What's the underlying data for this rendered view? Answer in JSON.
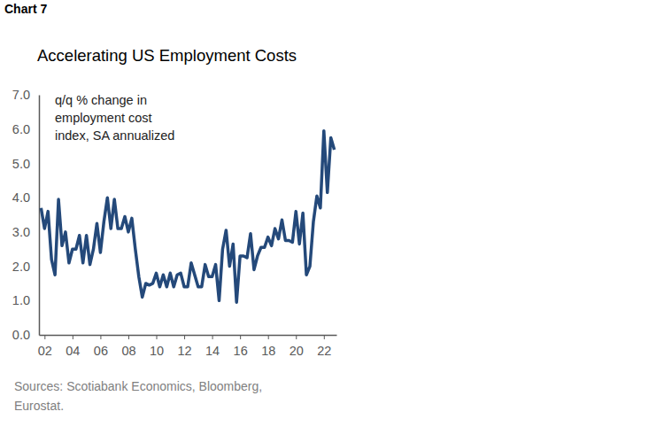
{
  "chart_data": {
    "type": "line",
    "chart_label": "Chart 7",
    "title": "Accelerating US Employment Costs",
    "annotations": [
      "q/q % change in",
      "employment cost",
      "index, SA annualized"
    ],
    "source": [
      "Sources: Scotiabank Economics, Bloomberg,",
      "Eurostat."
    ],
    "color": "#24497a",
    "x": [
      2001.75,
      2002.0,
      2002.25,
      2002.5,
      2002.75,
      2003.0,
      2003.25,
      2003.5,
      2003.75,
      2004.0,
      2004.25,
      2004.5,
      2004.75,
      2005.0,
      2005.25,
      2005.5,
      2005.75,
      2006.0,
      2006.25,
      2006.5,
      2006.75,
      2007.0,
      2007.25,
      2007.5,
      2007.75,
      2008.0,
      2008.25,
      2008.5,
      2008.75,
      2009.0,
      2009.25,
      2009.5,
      2009.75,
      2010.0,
      2010.25,
      2010.5,
      2010.75,
      2011.0,
      2011.25,
      2011.5,
      2011.75,
      2012.0,
      2012.25,
      2012.5,
      2012.75,
      2013.0,
      2013.25,
      2013.5,
      2013.75,
      2014.0,
      2014.25,
      2014.5,
      2014.75,
      2015.0,
      2015.25,
      2015.5,
      2015.75,
      2016.0,
      2016.25,
      2016.5,
      2016.75,
      2017.0,
      2017.25,
      2017.5,
      2017.75,
      2018.0,
      2018.25,
      2018.5,
      2018.75,
      2019.0,
      2019.25,
      2019.5,
      2019.75,
      2020.0,
      2020.25,
      2020.5,
      2020.75,
      2021.0,
      2021.25,
      2021.5,
      2021.75,
      2022.0,
      2022.25,
      2022.5,
      2022.75
    ],
    "values": [
      3.7,
      3.1,
      3.6,
      2.2,
      1.75,
      3.95,
      2.6,
      3.0,
      2.1,
      2.5,
      2.5,
      2.9,
      2.1,
      2.9,
      2.05,
      2.5,
      3.25,
      2.4,
      3.3,
      4.0,
      3.1,
      3.95,
      3.1,
      3.1,
      3.45,
      3.0,
      3.4,
      2.5,
      1.7,
      1.1,
      1.5,
      1.45,
      1.5,
      1.8,
      1.4,
      1.75,
      1.4,
      1.8,
      1.4,
      1.75,
      1.8,
      1.4,
      1.4,
      2.1,
      1.75,
      1.4,
      1.4,
      2.05,
      1.7,
      1.7,
      2.05,
      1.0,
      2.5,
      3.05,
      2.0,
      2.65,
      0.95,
      2.3,
      2.3,
      2.25,
      2.95,
      1.9,
      2.3,
      2.55,
      2.55,
      2.85,
      2.6,
      3.1,
      2.8,
      3.35,
      2.75,
      2.75,
      2.7,
      3.6,
      2.65,
      3.55,
      1.75,
      2.0,
      3.3,
      4.05,
      3.7,
      5.95,
      4.15,
      5.75,
      5.4
    ],
    "xlim": [
      2001.6,
      2022.9
    ],
    "xticks": [
      {
        "value": 2002,
        "label": "02"
      },
      {
        "value": 2004,
        "label": "04"
      },
      {
        "value": 2006,
        "label": "06"
      },
      {
        "value": 2008,
        "label": "08"
      },
      {
        "value": 2010,
        "label": "10"
      },
      {
        "value": 2012,
        "label": "12"
      },
      {
        "value": 2014,
        "label": "14"
      },
      {
        "value": 2016,
        "label": "16"
      },
      {
        "value": 2018,
        "label": "18"
      },
      {
        "value": 2020,
        "label": "20"
      },
      {
        "value": 2022,
        "label": "22"
      }
    ],
    "ylim": [
      0,
      7
    ],
    "yticks": [
      {
        "value": 0,
        "label": "0.0"
      },
      {
        "value": 1,
        "label": "1.0"
      },
      {
        "value": 2,
        "label": "2.0"
      },
      {
        "value": 3,
        "label": "3.0"
      },
      {
        "value": 4,
        "label": "4.0"
      },
      {
        "value": 5,
        "label": "5.0"
      },
      {
        "value": 6,
        "label": "6.0"
      },
      {
        "value": 7,
        "label": "7.0"
      }
    ],
    "grid": false
  }
}
